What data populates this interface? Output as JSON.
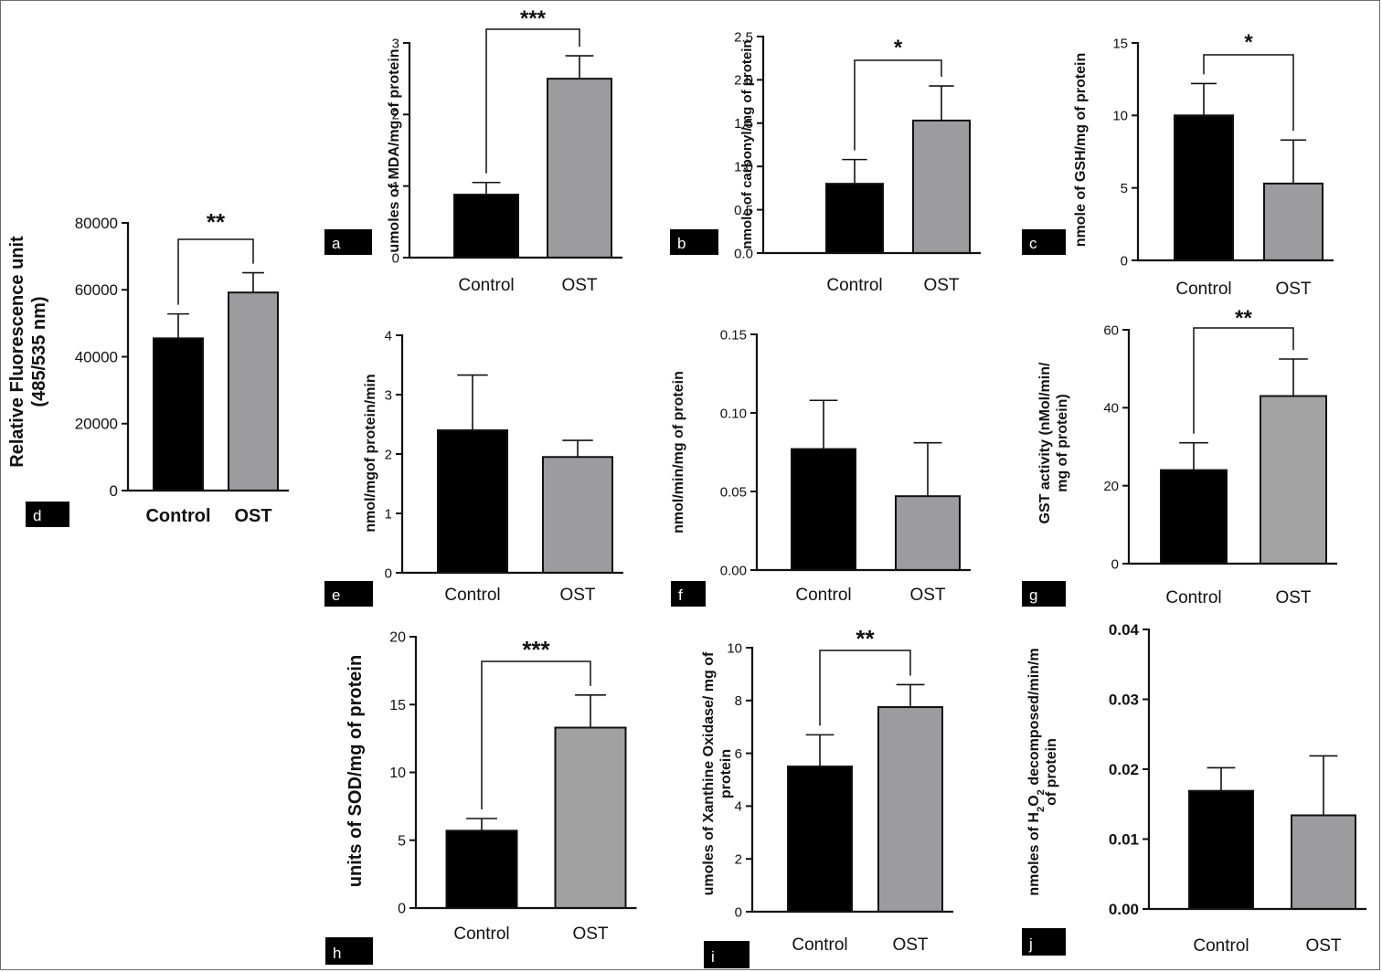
{
  "chart_data": [
    {
      "panel": "a",
      "type": "bar",
      "categories": [
        "Control",
        "OST"
      ],
      "values": [
        0.88,
        2.5
      ],
      "errors": [
        0.17,
        0.32
      ],
      "colors": [
        "#000000",
        "#9c9c9f"
      ],
      "ylabel": "umoles of MDA/mg of protein",
      "ylim": [
        0,
        3
      ],
      "yticks": [
        "0",
        "1",
        "2",
        "3"
      ],
      "significance": "***"
    },
    {
      "panel": "b",
      "type": "bar",
      "categories": [
        "Control",
        "OST"
      ],
      "values": [
        0.8,
        1.53
      ],
      "errors": [
        0.28,
        0.4
      ],
      "colors": [
        "#000000",
        "#9c9c9f"
      ],
      "ylabel": "nmole of carbonyl/mg of protein",
      "ylim": [
        0,
        2.5
      ],
      "yticks": [
        "0.0",
        "0.5",
        "1.0",
        "1.5",
        "2.0",
        "2.5"
      ],
      "significance": "*"
    },
    {
      "panel": "c",
      "type": "bar",
      "categories": [
        "Control",
        "OST"
      ],
      "values": [
        10.0,
        5.3
      ],
      "errors": [
        2.2,
        3.0
      ],
      "colors": [
        "#000000",
        "#9c9c9f"
      ],
      "ylabel": "nmole of GSH/mg of protein",
      "ylim": [
        0,
        15
      ],
      "yticks": [
        "0",
        "5",
        "10",
        "15"
      ],
      "significance": "*"
    },
    {
      "panel": "d",
      "type": "bar",
      "categories": [
        "Control",
        "OST"
      ],
      "values": [
        45500,
        59200
      ],
      "errors": [
        7300,
        5900
      ],
      "colors": [
        "#000000",
        "#9c9c9f"
      ],
      "ylabel_lines": [
        "Relative Fluorescence unit",
        "(485/535 nm)"
      ],
      "ylim": [
        0,
        80000
      ],
      "yticks": [
        "0",
        "20000",
        "40000",
        "60000",
        "80000"
      ],
      "significance": "**"
    },
    {
      "panel": "e",
      "type": "bar",
      "categories": [
        "Control",
        "OST"
      ],
      "values": [
        2.4,
        1.95
      ],
      "errors": [
        0.93,
        0.28
      ],
      "colors": [
        "#000000",
        "#9c9c9f"
      ],
      "ylabel": "nmol/mgof protein/min",
      "ylim": [
        0,
        4
      ],
      "yticks": [
        "0",
        "1",
        "2",
        "3",
        "4"
      ],
      "significance": ""
    },
    {
      "panel": "f",
      "type": "bar",
      "categories": [
        "Control",
        "OST"
      ],
      "values": [
        0.077,
        0.047
      ],
      "errors": [
        0.031,
        0.034
      ],
      "colors": [
        "#000000",
        "#9c9c9f"
      ],
      "ylabel": "nmol/min/mg of protein",
      "ylim": [
        0,
        0.15
      ],
      "yticks": [
        "0.00",
        "0.05",
        "0.10",
        "0.15"
      ],
      "significance": ""
    },
    {
      "panel": "g",
      "type": "bar",
      "categories": [
        "Control",
        "OST"
      ],
      "values": [
        24,
        43
      ],
      "errors": [
        7,
        9.5
      ],
      "colors": [
        "#000000",
        "#a3a3a3"
      ],
      "ylabel_lines": [
        "GST activity (nMol/min/",
        "mg of protein)"
      ],
      "ylim": [
        0,
        60
      ],
      "yticks": [
        "0",
        "20",
        "40",
        "60"
      ],
      "significance": "**"
    },
    {
      "panel": "h",
      "type": "bar",
      "categories": [
        "Control",
        "OST"
      ],
      "values": [
        5.7,
        13.3
      ],
      "errors": [
        0.9,
        2.4
      ],
      "colors": [
        "#000000",
        "#a1a1a1"
      ],
      "ylabel": "units of SOD/mg of protein",
      "ylim": [
        0,
        20
      ],
      "yticks": [
        "0",
        "5",
        "10",
        "15",
        "20"
      ],
      "significance": "***"
    },
    {
      "panel": "i",
      "type": "bar",
      "categories": [
        "Control",
        "OST"
      ],
      "values": [
        5.5,
        7.75
      ],
      "errors": [
        1.2,
        0.85
      ],
      "colors": [
        "#000000",
        "#9c9c9f"
      ],
      "ylabel_lines": [
        "umoles of Xanthine Oxidase/ mg of",
        "protein"
      ],
      "ylim": [
        0,
        10
      ],
      "yticks": [
        "0",
        "2",
        "4",
        "6",
        "8",
        "10"
      ],
      "significance": "**"
    },
    {
      "panel": "j",
      "type": "bar",
      "categories": [
        "Control",
        "OST"
      ],
      "values": [
        0.0169,
        0.0134
      ],
      "errors": [
        0.0033,
        0.0085
      ],
      "colors": [
        "#000000",
        "#9c9c9f"
      ],
      "ylabel_lines": [
        "nmoles of H2O2 decomposed/min/m",
        "of protein"
      ],
      "ylim": [
        0,
        0.04
      ],
      "yticks": [
        "0.00",
        "0.01",
        "0.02",
        "0.03",
        "0.04"
      ],
      "significance": ""
    }
  ]
}
